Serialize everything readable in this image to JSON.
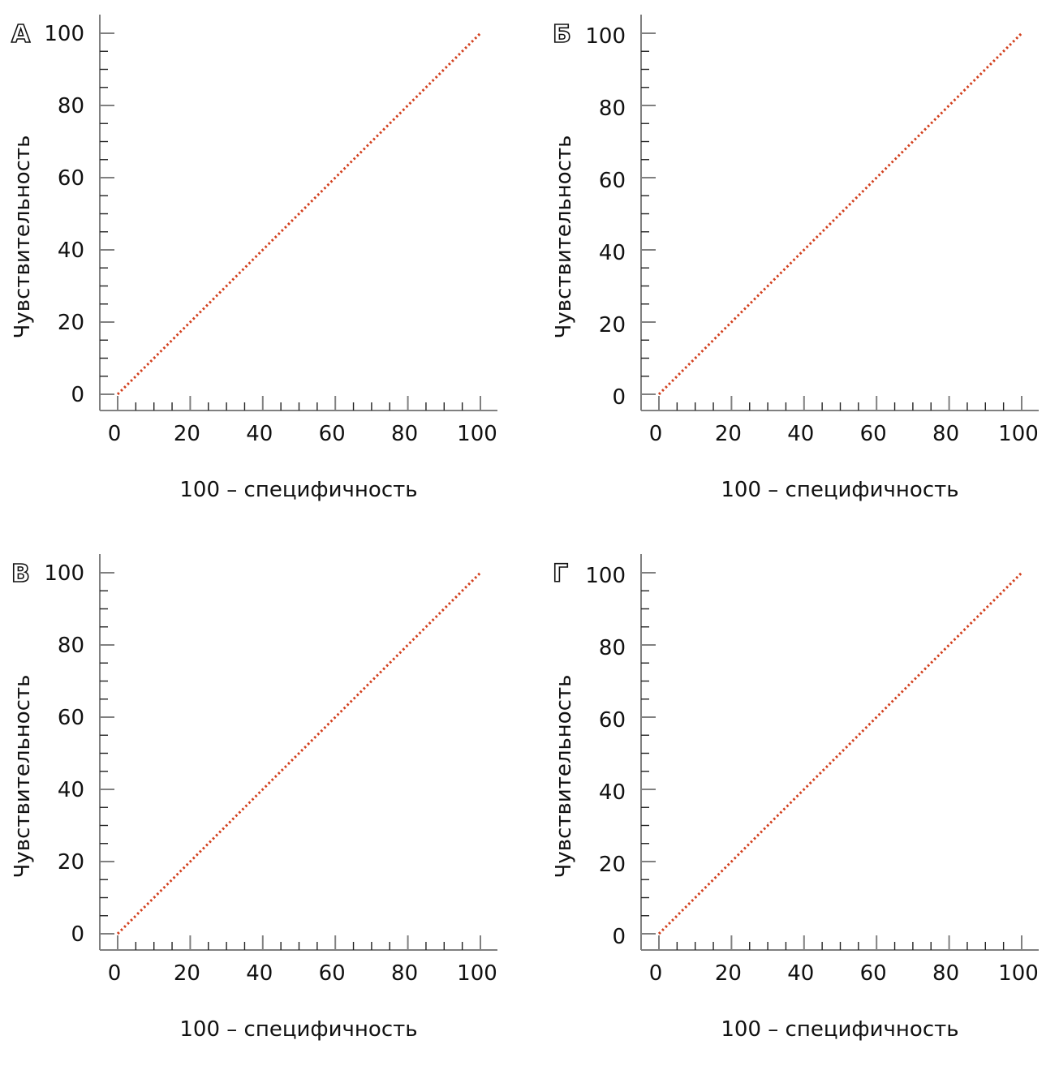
{
  "chart_data": [
    {
      "type": "line",
      "panel_label": "А",
      "xlabel": "100 – специфичность",
      "ylabel": "Чувствительность",
      "xlim": [
        0,
        100
      ],
      "ylim": [
        0,
        100
      ],
      "xticks": [
        0,
        20,
        40,
        60,
        80,
        100
      ],
      "yticks": [
        0,
        20,
        40,
        60,
        80,
        100
      ],
      "minor_tick_step": 5,
      "grid": false,
      "series": [
        {
          "x": [
            0,
            100
          ],
          "y": [
            0,
            100
          ],
          "style": "dotted",
          "color": "#d2401e"
        }
      ]
    },
    {
      "type": "line",
      "panel_label": "Б",
      "xlabel": "100 – специфичность",
      "ylabel": "Чувствительность",
      "xlim": [
        0,
        100
      ],
      "ylim": [
        0,
        100
      ],
      "xticks": [
        0,
        20,
        40,
        60,
        80,
        100
      ],
      "yticks": [
        0,
        20,
        40,
        60,
        80,
        100
      ],
      "minor_tick_step": 5,
      "grid": false,
      "series": [
        {
          "x": [
            0,
            100
          ],
          "y": [
            0,
            100
          ],
          "style": "dotted",
          "color": "#d2401e"
        }
      ]
    },
    {
      "type": "line",
      "panel_label": "В",
      "xlabel": "100 – специфичность",
      "ylabel": "Чувствительность",
      "xlim": [
        0,
        100
      ],
      "ylim": [
        0,
        100
      ],
      "xticks": [
        0,
        20,
        40,
        60,
        80,
        100
      ],
      "yticks": [
        0,
        20,
        40,
        60,
        80,
        100
      ],
      "minor_tick_step": 5,
      "grid": false,
      "series": [
        {
          "x": [
            0,
            100
          ],
          "y": [
            0,
            100
          ],
          "style": "dotted",
          "color": "#d2401e"
        }
      ]
    },
    {
      "type": "line",
      "panel_label": "Г",
      "xlabel": "100 – специфичность",
      "ylabel": "Чувствительность",
      "xlim": [
        0,
        100
      ],
      "ylim": [
        0,
        100
      ],
      "xticks": [
        0,
        20,
        40,
        60,
        80,
        100
      ],
      "yticks": [
        0,
        20,
        40,
        60,
        80,
        100
      ],
      "minor_tick_step": 5,
      "grid": false,
      "series": [
        {
          "x": [
            0,
            100
          ],
          "y": [
            0,
            100
          ],
          "style": "dotted",
          "color": "#d2401e"
        }
      ]
    }
  ],
  "colors": {
    "axis": "#808080",
    "line": "#d2401e"
  }
}
